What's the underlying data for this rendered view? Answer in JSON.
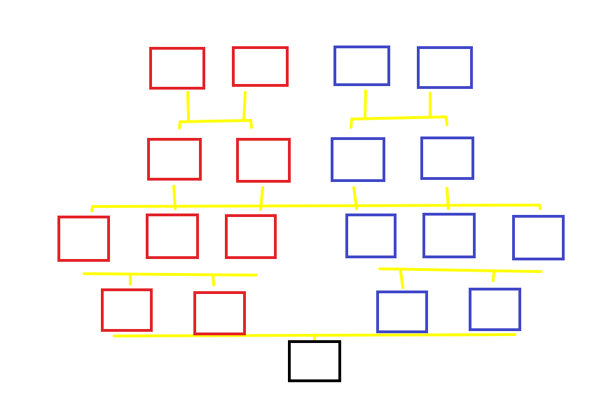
{
  "diagram": {
    "kind": "family-tree",
    "labels": "none",
    "colors": {
      "background": "#ffffff",
      "maternal": "#e32329",
      "paternal": "#4148c8",
      "self": "#000000",
      "connector": "#ffff00"
    },
    "groups": {
      "maternal": {
        "generations": [
          2,
          2,
          3,
          2
        ]
      },
      "paternal": {
        "generations": [
          2,
          2,
          3,
          2
        ]
      },
      "self": {
        "generations": [
          1
        ]
      }
    }
  }
}
